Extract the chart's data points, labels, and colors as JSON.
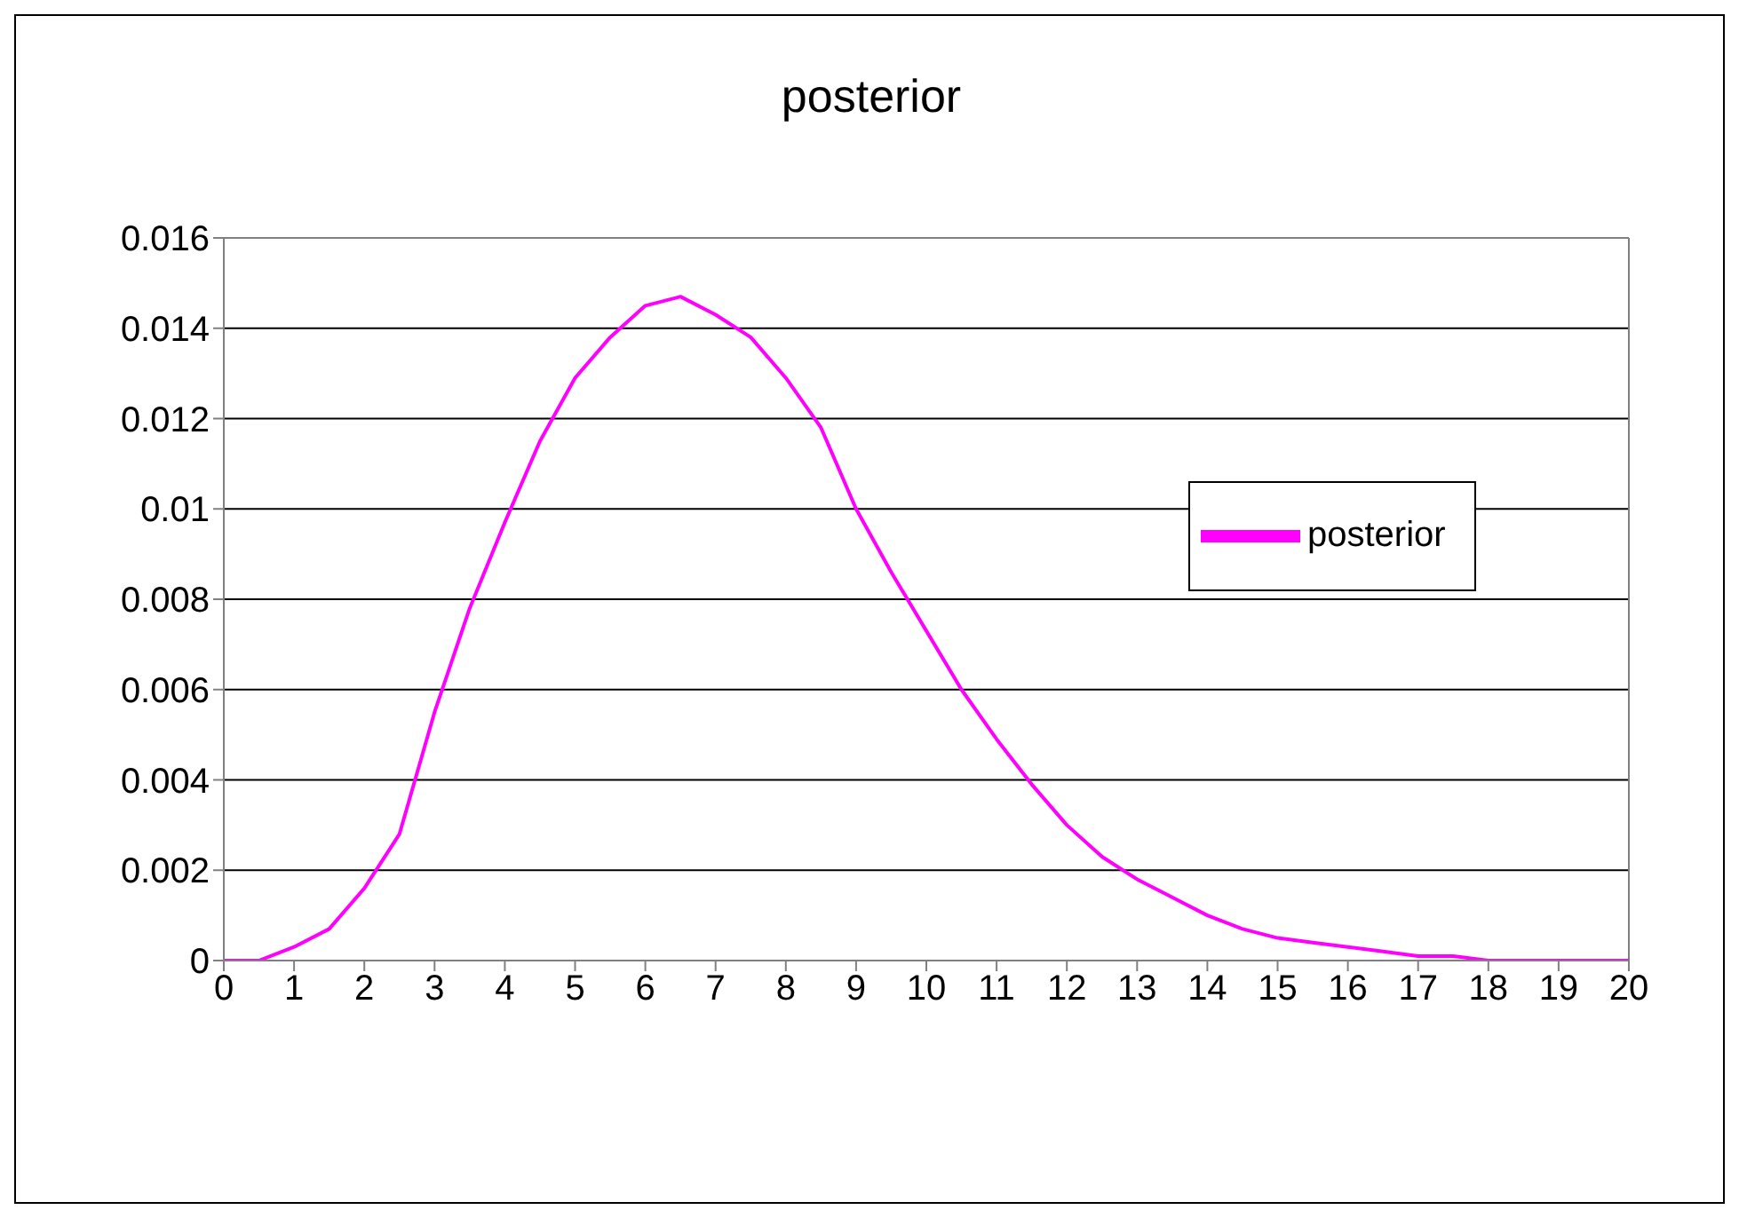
{
  "chart_data": {
    "type": "line",
    "title": "posterior",
    "x": [
      0,
      0.5,
      1,
      1.5,
      2,
      2.5,
      3,
      3.5,
      4,
      4.5,
      5,
      5.5,
      6,
      6.5,
      7,
      7.5,
      8,
      8.5,
      9,
      9.5,
      10,
      10.5,
      11,
      11.5,
      12,
      12.5,
      13,
      13.5,
      14,
      14.5,
      15,
      15.5,
      16,
      16.5,
      17,
      17.5,
      18,
      19,
      20
    ],
    "series": [
      {
        "name": "posterior",
        "color": "#ff00ff",
        "values": [
          0,
          0,
          0.0003,
          0.0007,
          0.0016,
          0.0028,
          0.0055,
          0.0078,
          0.0097,
          0.0115,
          0.0129,
          0.0138,
          0.0145,
          0.0147,
          0.0143,
          0.0138,
          0.0129,
          0.0118,
          0.01,
          0.0086,
          0.0073,
          0.006,
          0.0049,
          0.0039,
          0.003,
          0.0023,
          0.0018,
          0.0014,
          0.001,
          0.0007,
          0.0005,
          0.0004,
          0.0003,
          0.0002,
          0.0001,
          0.0001,
          0,
          0,
          0
        ]
      }
    ],
    "xlim": [
      0,
      20
    ],
    "xticks": [
      0,
      1,
      2,
      3,
      4,
      5,
      6,
      7,
      8,
      9,
      10,
      11,
      12,
      13,
      14,
      15,
      16,
      17,
      18,
      19,
      20
    ],
    "ylim": [
      0,
      0.016
    ],
    "yticks": [
      0,
      0.002,
      0.004,
      0.006,
      0.008,
      0.01,
      0.012,
      0.014,
      0.016
    ],
    "grid": "y",
    "legend": "right",
    "marker": "none",
    "line_style": "solid"
  }
}
